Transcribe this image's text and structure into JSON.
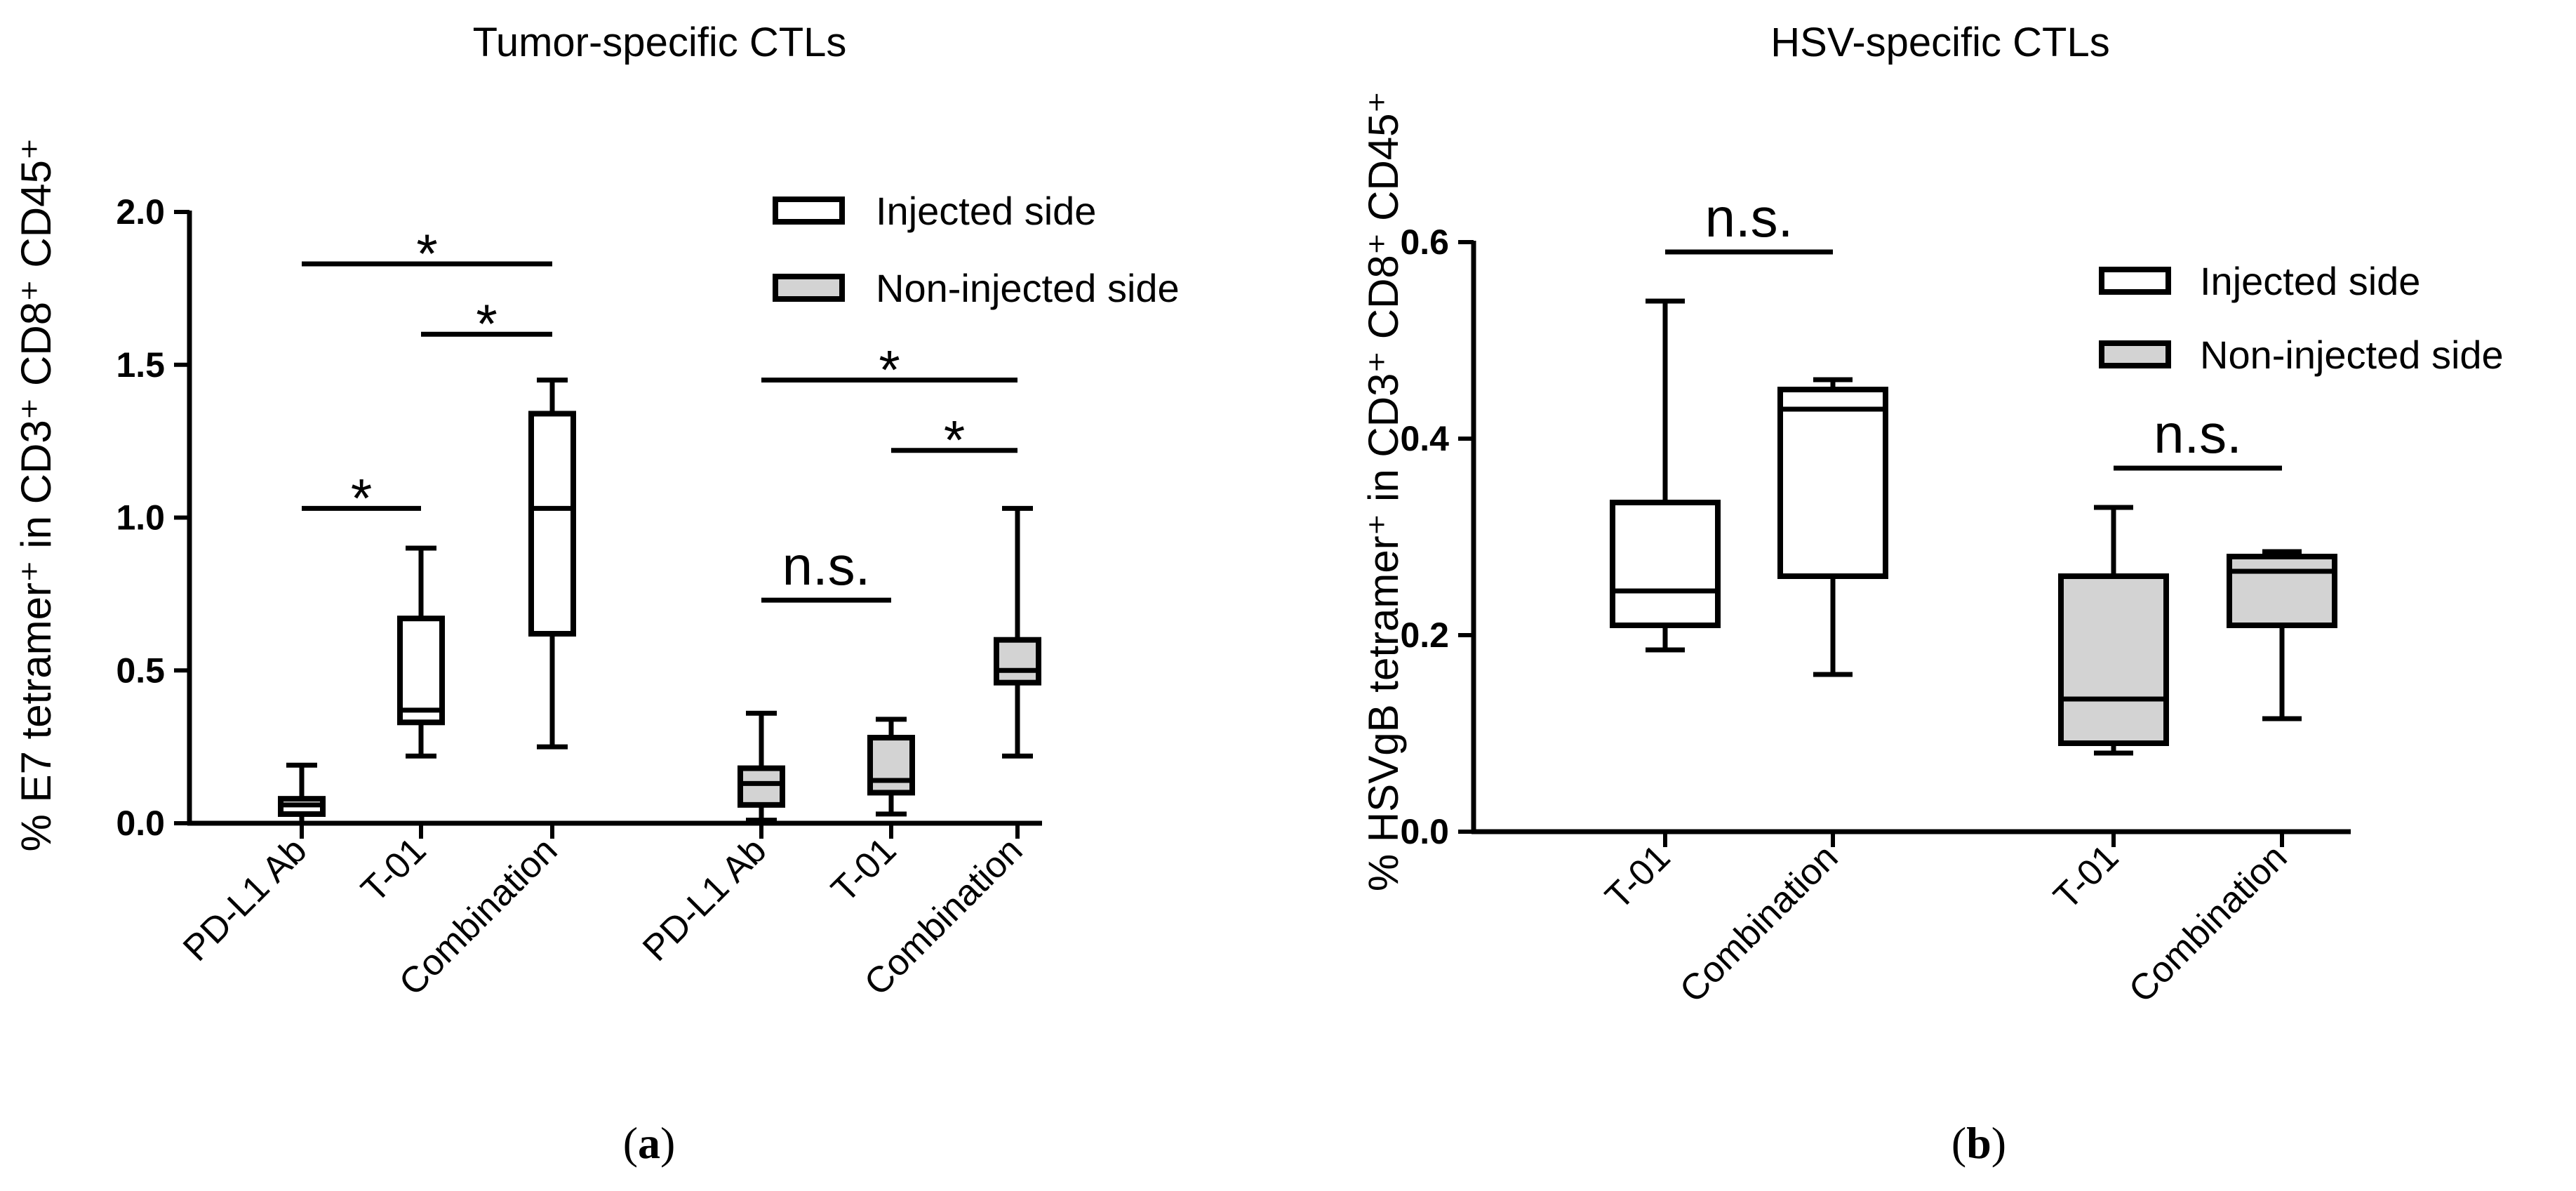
{
  "chart_data": [
    {
      "type": "box",
      "panel": "(a)",
      "panel_letter": "a",
      "title": "Tumor-specific CTLs",
      "ylabel": "% E7 tetramer⁺ in CD3⁺ CD8⁺ CD45⁺",
      "ylim": [
        0,
        2.0
      ],
      "yticks": [
        "0.0",
        "0.5",
        "1.0",
        "1.5",
        "2.0"
      ],
      "legend": [
        {
          "label": "Injected side",
          "fill": "#ffffff"
        },
        {
          "label": "Non-injected side",
          "fill": "#d3d3d3"
        }
      ],
      "boxes": [
        {
          "category": "PD-L1 Ab",
          "series": "Injected side",
          "min": 0.0,
          "q1": 0.03,
          "median": 0.06,
          "q3": 0.08,
          "max": 0.19
        },
        {
          "category": "T-01",
          "series": "Injected side",
          "min": 0.22,
          "q1": 0.33,
          "median": 0.37,
          "q3": 0.67,
          "max": 0.9
        },
        {
          "category": "Combination",
          "series": "Injected side",
          "min": 0.25,
          "q1": 0.62,
          "median": 1.03,
          "q3": 1.34,
          "max": 1.45
        },
        {
          "category": "PD-L1 Ab",
          "series": "Non-injected side",
          "min": 0.01,
          "q1": 0.06,
          "median": 0.13,
          "q3": 0.18,
          "max": 0.36
        },
        {
          "category": "T-01",
          "series": "Non-injected side",
          "min": 0.03,
          "q1": 0.1,
          "median": 0.14,
          "q3": 0.28,
          "max": 0.34
        },
        {
          "category": "Combination",
          "series": "Non-injected side",
          "min": 0.22,
          "q1": 0.46,
          "median": 0.5,
          "q3": 0.6,
          "max": 1.03
        }
      ],
      "annotations": [
        {
          "from": 0,
          "to": 1,
          "text": "*",
          "level": 1.03
        },
        {
          "from": 0,
          "to": 2,
          "text": "*",
          "level": 1.83
        },
        {
          "from": 1,
          "to": 2,
          "text": "*",
          "level": 1.6
        },
        {
          "from": 3,
          "to": 4,
          "text": "n.s.",
          "level": 0.73
        },
        {
          "from": 3,
          "to": 5,
          "text": "*",
          "level": 1.45
        },
        {
          "from": 4,
          "to": 5,
          "text": "*",
          "level": 1.22
        }
      ]
    },
    {
      "type": "box",
      "panel": "(b)",
      "panel_letter": "b",
      "title": "HSV-specific CTLs",
      "ylabel": "% HSVgB tetramer⁺ in CD3⁺ CD8⁺ CD45⁺",
      "ylim": [
        0,
        0.6
      ],
      "yticks": [
        "0.0",
        "0.2",
        "0.4",
        "0.6"
      ],
      "legend": [
        {
          "label": "Injected side",
          "fill": "#ffffff"
        },
        {
          "label": "Non-injected side",
          "fill": "#d3d3d3"
        }
      ],
      "boxes": [
        {
          "category": "T-01",
          "series": "Injected side",
          "min": 0.185,
          "q1": 0.21,
          "median": 0.245,
          "q3": 0.335,
          "max": 0.54
        },
        {
          "category": "Combination",
          "series": "Injected side",
          "min": 0.16,
          "q1": 0.26,
          "median": 0.43,
          "q3": 0.45,
          "max": 0.46
        },
        {
          "category": "T-01",
          "series": "Non-injected side",
          "min": 0.08,
          "q1": 0.09,
          "median": 0.135,
          "q3": 0.26,
          "max": 0.33
        },
        {
          "category": "Combination",
          "series": "Non-injected side",
          "min": 0.115,
          "q1": 0.21,
          "median": 0.265,
          "q3": 0.28,
          "max": 0.285
        }
      ],
      "annotations": [
        {
          "from": 0,
          "to": 1,
          "text": "n.s.",
          "level": 0.59
        },
        {
          "from": 2,
          "to": 3,
          "text": "n.s.",
          "level": 0.37
        }
      ]
    }
  ]
}
